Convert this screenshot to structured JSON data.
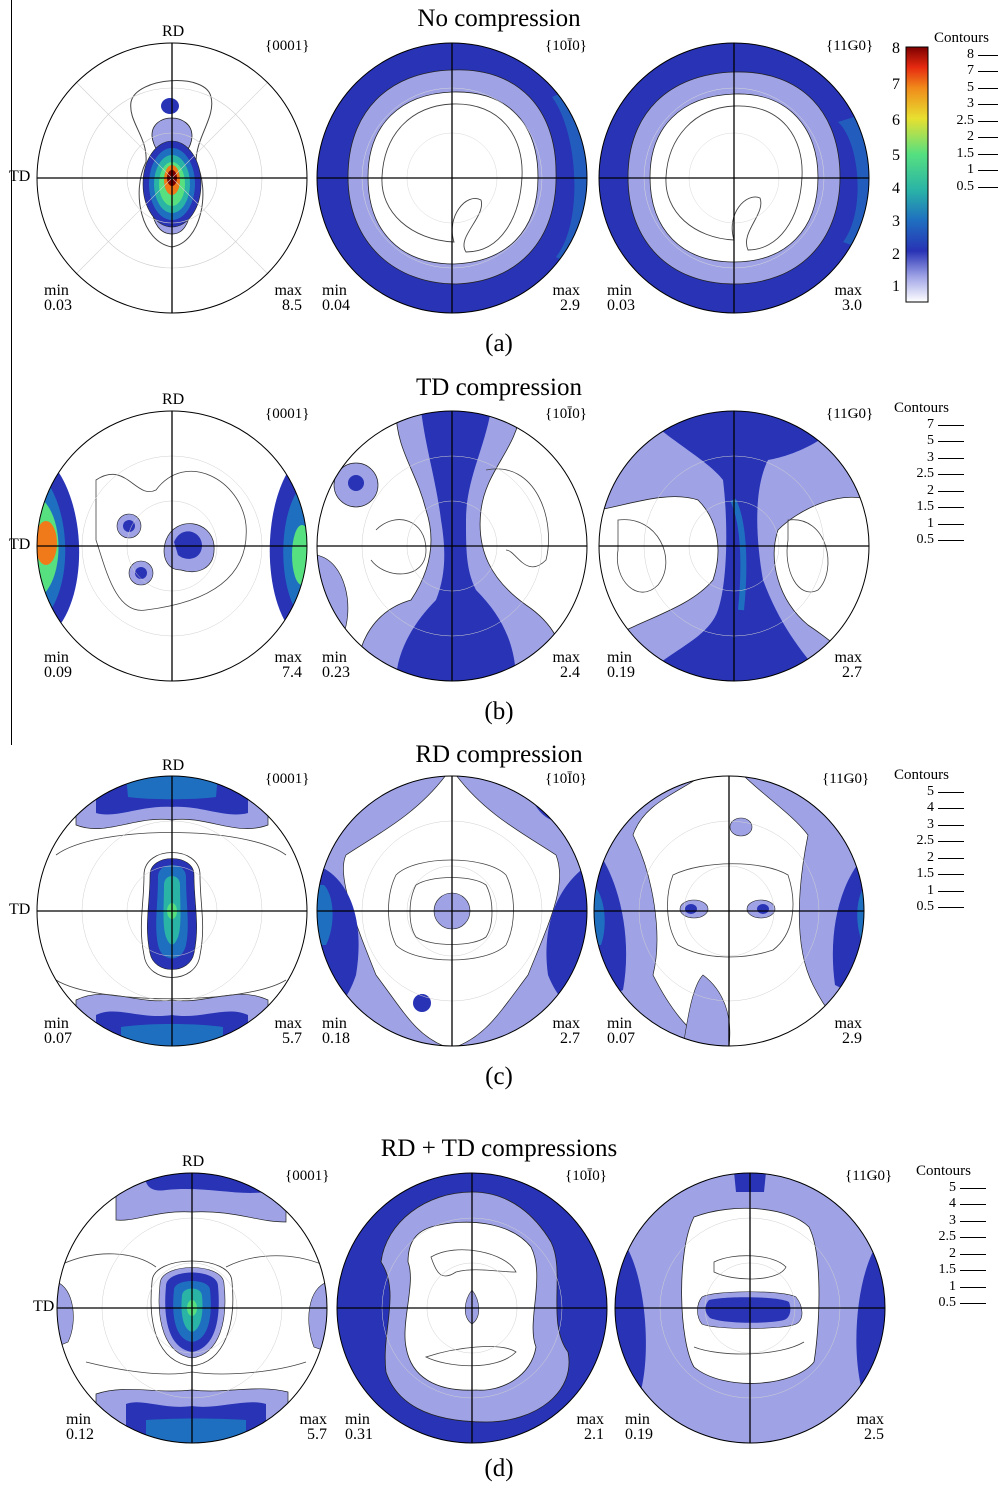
{
  "panels": [
    {
      "title": "No compression",
      "label": "(a)",
      "poles": [
        {
          "plane": "{0001}",
          "min_label": "min",
          "min": "0.03",
          "max_label": "max",
          "max": "8.5",
          "rd": "RD",
          "td": "TD"
        },
        {
          "plane": "{10Ī0}",
          "min_label": "min",
          "min": "0.04",
          "max_label": "max",
          "max": "2.9"
        },
        {
          "plane": "{11Ǥ0}",
          "min_label": "min",
          "min": "0.03",
          "max_label": "max",
          "max": "3.0"
        }
      ],
      "contours_title": "Contours",
      "contours": [
        "8",
        "7",
        "5",
        "3",
        "2.5",
        "2",
        "1.5",
        "1",
        "0.5"
      ],
      "colorbar_ticks": [
        "8",
        "7",
        "6",
        "5",
        "4",
        "3",
        "2",
        "1"
      ]
    },
    {
      "title": "TD compression",
      "label": "(b)",
      "poles": [
        {
          "plane": "{0001}",
          "min_label": "min",
          "min": "0.09",
          "max_label": "max",
          "max": "7.4",
          "rd": "RD",
          "td": "TD"
        },
        {
          "plane": "{10Ī0}",
          "min_label": "min",
          "min": "0.23",
          "max_label": "max",
          "max": "2.4"
        },
        {
          "plane": "{11Ǥ0}",
          "min_label": "min",
          "min": "0.19",
          "max_label": "max",
          "max": "2.7"
        }
      ],
      "contours_title": "Contours",
      "contours": [
        "7",
        "5",
        "3",
        "2.5",
        "2",
        "1.5",
        "1",
        "0.5"
      ]
    },
    {
      "title": "RD compression",
      "label": "(c)",
      "poles": [
        {
          "plane": "{0001}",
          "min_label": "min",
          "min": "0.07",
          "max_label": "max",
          "max": "5.7",
          "rd": "RD",
          "td": "TD"
        },
        {
          "plane": "{10Ī0}",
          "min_label": "min",
          "min": "0.18",
          "max_label": "max",
          "max": "2.7"
        },
        {
          "plane": "{11Ǥ0}",
          "min_label": "min",
          "min": "0.07",
          "max_label": "max",
          "max": "2.9"
        }
      ],
      "contours_title": "Contours",
      "contours": [
        "5",
        "4",
        "3",
        "2.5",
        "2",
        "1.5",
        "1",
        "0.5"
      ]
    },
    {
      "title": "RD + TD compressions",
      "label": "(d)",
      "poles": [
        {
          "plane": "{0001}",
          "min_label": "min",
          "min": "0.12",
          "max_label": "max",
          "max": "5.7",
          "rd": "RD",
          "td": "TD"
        },
        {
          "plane": "{10Ī0}",
          "min_label": "min",
          "min": "0.31",
          "max_label": "max",
          "max": "2.1"
        },
        {
          "plane": "{11Ǥ0}",
          "min_label": "min",
          "min": "0.19",
          "max_label": "max",
          "max": "2.5"
        }
      ],
      "contours_title": "Contours",
      "contours": [
        "5",
        "4",
        "3",
        "2.5",
        "2",
        "1.5",
        "1",
        "0.5"
      ]
    }
  ],
  "colors": {
    "level_0_5": "#ffffff",
    "level_1": "#9fa3e6",
    "level_2": "#3a3fd6",
    "level_2_5": "#2833b5",
    "level_3": "#1f6fc0",
    "level_4": "#2ab4a6",
    "level_5": "#56e080",
    "level_7": "#f07a1a",
    "level_8": "#7d0000"
  }
}
